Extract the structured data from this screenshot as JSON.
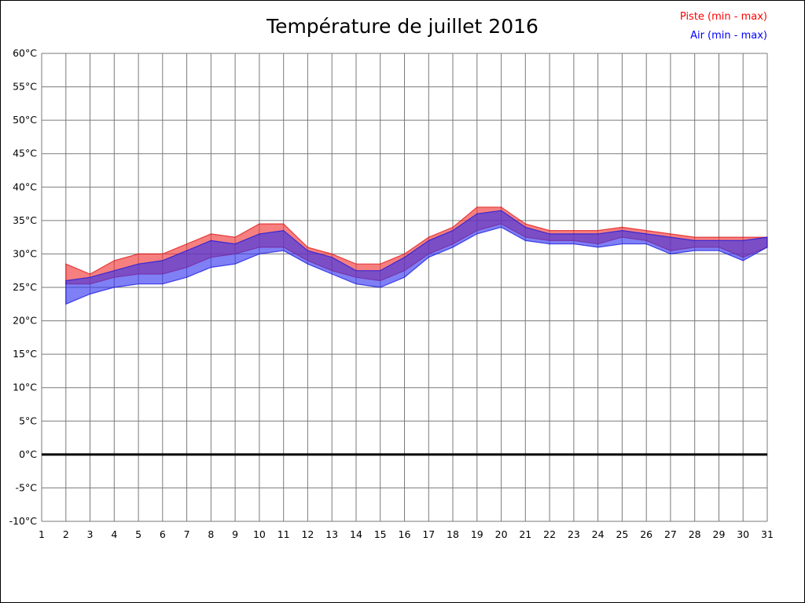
{
  "title": "Température de juillet 2016",
  "chart_data": {
    "type": "area",
    "title": "Température de juillet 2016",
    "xlabel": "",
    "ylabel": "",
    "xlim": [
      1,
      31
    ],
    "ylim": [
      -10,
      60
    ],
    "grid": true,
    "zero_line": true,
    "legend_position": "top-right",
    "colors": {
      "grid": "#7a7a7a",
      "zero_line": "#000000",
      "text": "#000000",
      "background": "#ffffff"
    },
    "y_ticks": [
      {
        "v": 60,
        "label": "60°C"
      },
      {
        "v": 55,
        "label": "55°C"
      },
      {
        "v": 50,
        "label": "50°C"
      },
      {
        "v": 45,
        "label": "45°C"
      },
      {
        "v": 40,
        "label": "40°C"
      },
      {
        "v": 35,
        "label": "35°C"
      },
      {
        "v": 30,
        "label": "30°C"
      },
      {
        "v": 25,
        "label": "25°C"
      },
      {
        "v": 20,
        "label": "20°C"
      },
      {
        "v": 15,
        "label": "15°C"
      },
      {
        "v": 10,
        "label": "10°C"
      },
      {
        "v": 5,
        "label": "5°C"
      },
      {
        "v": 0,
        "label": "0°C"
      },
      {
        "v": -5,
        "label": "-5°C"
      },
      {
        "v": -10,
        "label": "-10°C"
      }
    ],
    "x_ticks": [
      {
        "v": 1,
        "label": "1"
      },
      {
        "v": 2,
        "label": "2"
      },
      {
        "v": 3,
        "label": "3"
      },
      {
        "v": 4,
        "label": "4"
      },
      {
        "v": 5,
        "label": "5"
      },
      {
        "v": 6,
        "label": "6"
      },
      {
        "v": 7,
        "label": "7"
      },
      {
        "v": 8,
        "label": "8"
      },
      {
        "v": 9,
        "label": "9"
      },
      {
        "v": 10,
        "label": "10"
      },
      {
        "v": 11,
        "label": "11"
      },
      {
        "v": 12,
        "label": "12"
      },
      {
        "v": 13,
        "label": "13"
      },
      {
        "v": 14,
        "label": "14"
      },
      {
        "v": 15,
        "label": "15"
      },
      {
        "v": 16,
        "label": "16"
      },
      {
        "v": 17,
        "label": "17"
      },
      {
        "v": 18,
        "label": "18"
      },
      {
        "v": 19,
        "label": "19"
      },
      {
        "v": 20,
        "label": "20"
      },
      {
        "v": 21,
        "label": "21"
      },
      {
        "v": 22,
        "label": "22"
      },
      {
        "v": 23,
        "label": "23"
      },
      {
        "v": 24,
        "label": "24"
      },
      {
        "v": 25,
        "label": "25"
      },
      {
        "v": 26,
        "label": "26"
      },
      {
        "v": 27,
        "label": "27"
      },
      {
        "v": 28,
        "label": "28"
      },
      {
        "v": 29,
        "label": "29"
      },
      {
        "v": 30,
        "label": "30"
      },
      {
        "v": 31,
        "label": "31"
      }
    ],
    "x": [
      2,
      3,
      4,
      5,
      6,
      7,
      8,
      9,
      10,
      11,
      12,
      13,
      14,
      15,
      16,
      17,
      18,
      19,
      20,
      21,
      22,
      23,
      24,
      25,
      26,
      27,
      28,
      29,
      30,
      31
    ],
    "series": [
      {
        "name": "Piste (min - max)",
        "legend_color": "#ff0000",
        "fill": "#f03030",
        "stroke": "#dd1515",
        "min": [
          25.5,
          25.5,
          26.5,
          27,
          27,
          28,
          29.5,
          30,
          31,
          31,
          29,
          27.5,
          26.5,
          26,
          27.5,
          30,
          31.5,
          33.5,
          34.5,
          32.5,
          32,
          32,
          31.5,
          32.5,
          32,
          30.5,
          31,
          31,
          29.5,
          31
        ],
        "max": [
          28.5,
          27,
          29,
          30,
          30,
          31.5,
          33,
          32.5,
          34.5,
          34.5,
          31,
          30,
          28.5,
          28.5,
          30,
          32.5,
          34,
          37,
          37,
          34.5,
          33.5,
          33.5,
          33.5,
          34,
          33.5,
          33,
          32.5,
          32.5,
          32.5,
          32.5
        ]
      },
      {
        "name": "Air (min - max)",
        "legend_color": "#0000ff",
        "fill": "#3030f0",
        "stroke": "#1515dd",
        "min": [
          22.5,
          24,
          25,
          25.5,
          25.5,
          26.5,
          28,
          28.5,
          30,
          30.5,
          28.5,
          27,
          25.5,
          25,
          26.5,
          29.5,
          31,
          33,
          34,
          32,
          31.5,
          31.5,
          31,
          31.5,
          31.5,
          30,
          30.5,
          30.5,
          29,
          31
        ],
        "max": [
          26,
          26.5,
          27.5,
          28.5,
          29,
          30.5,
          32,
          31.5,
          33,
          33.5,
          30.5,
          29.5,
          27.5,
          27.5,
          29.5,
          32,
          33.5,
          36,
          36.5,
          34,
          33,
          33,
          33,
          33.5,
          33,
          32.5,
          32,
          32,
          32,
          32.5
        ]
      }
    ]
  }
}
